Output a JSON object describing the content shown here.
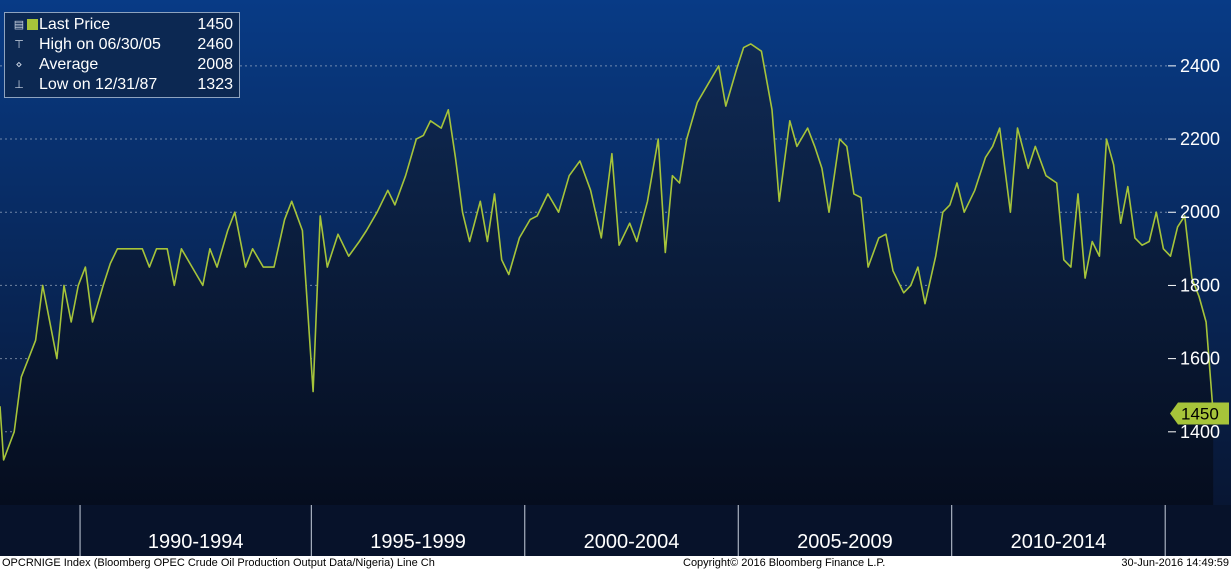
{
  "chart_data": {
    "type": "line",
    "series": [
      {
        "name": "Last Price",
        "color": "#a6c43a",
        "points": [
          [
            1987.0,
            1470
          ],
          [
            1987.1,
            1323
          ],
          [
            1987.4,
            1400
          ],
          [
            1987.6,
            1550
          ],
          [
            1987.8,
            1600
          ],
          [
            1988.0,
            1650
          ],
          [
            1988.2,
            1800
          ],
          [
            1988.4,
            1700
          ],
          [
            1988.6,
            1600
          ],
          [
            1988.8,
            1800
          ],
          [
            1989.0,
            1700
          ],
          [
            1989.2,
            1800
          ],
          [
            1989.4,
            1850
          ],
          [
            1989.6,
            1700
          ],
          [
            1989.9,
            1800
          ],
          [
            1990.1,
            1860
          ],
          [
            1990.3,
            1900
          ],
          [
            1990.6,
            1900
          ],
          [
            1991.0,
            1900
          ],
          [
            1991.2,
            1850
          ],
          [
            1991.4,
            1900
          ],
          [
            1991.7,
            1900
          ],
          [
            1991.9,
            1800
          ],
          [
            1992.1,
            1900
          ],
          [
            1992.4,
            1850
          ],
          [
            1992.7,
            1800
          ],
          [
            1992.9,
            1900
          ],
          [
            1993.1,
            1850
          ],
          [
            1993.4,
            1950
          ],
          [
            1993.6,
            2000
          ],
          [
            1993.9,
            1850
          ],
          [
            1994.1,
            1900
          ],
          [
            1994.4,
            1850
          ],
          [
            1994.7,
            1850
          ],
          [
            1995.0,
            1980
          ],
          [
            1995.2,
            2030
          ],
          [
            1995.5,
            1950
          ],
          [
            1995.8,
            1510
          ],
          [
            1996.0,
            1990
          ],
          [
            1996.2,
            1850
          ],
          [
            1996.5,
            1940
          ],
          [
            1996.8,
            1880
          ],
          [
            1997.1,
            1920
          ],
          [
            1997.3,
            1950
          ],
          [
            1997.6,
            2000
          ],
          [
            1997.9,
            2060
          ],
          [
            1998.1,
            2020
          ],
          [
            1998.4,
            2100
          ],
          [
            1998.7,
            2200
          ],
          [
            1998.9,
            2210
          ],
          [
            1999.1,
            2250
          ],
          [
            1999.4,
            2230
          ],
          [
            1999.6,
            2280
          ],
          [
            1999.8,
            2150
          ],
          [
            2000.0,
            2000
          ],
          [
            2000.2,
            1920
          ],
          [
            2000.5,
            2030
          ],
          [
            2000.7,
            1920
          ],
          [
            2000.9,
            2050
          ],
          [
            2001.1,
            1870
          ],
          [
            2001.3,
            1830
          ],
          [
            2001.6,
            1930
          ],
          [
            2001.9,
            1980
          ],
          [
            2002.1,
            1990
          ],
          [
            2002.4,
            2050
          ],
          [
            2002.7,
            2000
          ],
          [
            2003.0,
            2100
          ],
          [
            2003.3,
            2140
          ],
          [
            2003.6,
            2060
          ],
          [
            2003.9,
            1930
          ],
          [
            2004.2,
            2160
          ],
          [
            2004.4,
            1910
          ],
          [
            2004.7,
            1970
          ],
          [
            2004.9,
            1920
          ],
          [
            2005.2,
            2030
          ],
          [
            2005.5,
            2200
          ],
          [
            2005.7,
            1890
          ],
          [
            2005.9,
            2100
          ],
          [
            2006.1,
            2080
          ],
          [
            2006.3,
            2200
          ],
          [
            2006.6,
            2300
          ],
          [
            2006.9,
            2350
          ],
          [
            2007.2,
            2400
          ],
          [
            2007.4,
            2290
          ],
          [
            2007.7,
            2390
          ],
          [
            2007.9,
            2450
          ],
          [
            2008.1,
            2460
          ],
          [
            2008.4,
            2440
          ],
          [
            2008.7,
            2280
          ],
          [
            2008.9,
            2030
          ],
          [
            2009.2,
            2250
          ],
          [
            2009.4,
            2180
          ],
          [
            2009.7,
            2230
          ],
          [
            2009.9,
            2180
          ],
          [
            2010.1,
            2120
          ],
          [
            2010.3,
            2000
          ],
          [
            2010.6,
            2200
          ],
          [
            2010.8,
            2180
          ],
          [
            2011.0,
            2050
          ],
          [
            2011.2,
            2040
          ],
          [
            2011.4,
            1850
          ],
          [
            2011.7,
            1930
          ],
          [
            2011.9,
            1940
          ],
          [
            2012.1,
            1840
          ],
          [
            2012.4,
            1780
          ],
          [
            2012.6,
            1800
          ],
          [
            2012.8,
            1850
          ],
          [
            2013.0,
            1750
          ],
          [
            2013.3,
            1880
          ],
          [
            2013.5,
            2000
          ],
          [
            2013.7,
            2020
          ],
          [
            2013.9,
            2080
          ],
          [
            2014.1,
            2000
          ],
          [
            2014.4,
            2060
          ],
          [
            2014.7,
            2150
          ],
          [
            2014.9,
            2180
          ],
          [
            2015.1,
            2230
          ],
          [
            2015.4,
            2000
          ],
          [
            2015.6,
            2230
          ],
          [
            2015.9,
            2120
          ],
          [
            2016.1,
            2180
          ],
          [
            2016.4,
            2100
          ],
          [
            2016.7,
            2080
          ],
          [
            2016.9,
            1870
          ],
          [
            2017.1,
            1850
          ],
          [
            2017.3,
            2050
          ],
          [
            2017.5,
            1820
          ],
          [
            2017.7,
            1920
          ],
          [
            2017.9,
            1880
          ],
          [
            2018.1,
            2200
          ],
          [
            2018.3,
            2130
          ],
          [
            2018.5,
            1970
          ],
          [
            2018.7,
            2070
          ],
          [
            2018.9,
            1930
          ],
          [
            2019.1,
            1910
          ],
          [
            2019.3,
            1920
          ],
          [
            2019.5,
            2000
          ],
          [
            2019.7,
            1900
          ],
          [
            2019.9,
            1880
          ],
          [
            2020.1,
            1960
          ],
          [
            2020.3,
            1990
          ],
          [
            2020.5,
            1820
          ],
          [
            2020.7,
            1770
          ],
          [
            2020.9,
            1700
          ],
          [
            2021.1,
            1450
          ]
        ]
      }
    ],
    "title": "",
    "xlabel": "",
    "ylabel": "",
    "xlim": [
      1987.0,
      2021.6
    ],
    "ylim": [
      1200,
      2580
    ],
    "y_ticks": [
      1400,
      1600,
      1800,
      2000,
      2200,
      2400
    ],
    "x_period_dividers": [
      1989.25,
      1995.75,
      2001.75,
      2007.75,
      2013.75,
      2019.75
    ],
    "x_period_labels": [
      {
        "label": "1990-1994",
        "at": 1992.5
      },
      {
        "label": "1995-1999",
        "at": 1998.75
      },
      {
        "label": "2000-2004",
        "at": 2004.75
      },
      {
        "label": "2005-2009",
        "at": 2010.75
      },
      {
        "label": "2010-2014",
        "at": 2016.75
      }
    ],
    "last_value_tag": "1450",
    "grid": true,
    "grid_style": "dashed-horizontal",
    "background_top_color": "#083b86",
    "background_bottom_color": "#081633",
    "fill_top_color": "#0f2a55",
    "fill_bottom_color": "#050d1e"
  },
  "legend": {
    "items": [
      {
        "label": "Last Price",
        "value": "1450"
      },
      {
        "label": "High on 06/30/05",
        "value": "2460"
      },
      {
        "label": "Average",
        "value": "2008"
      },
      {
        "label": "Low on 12/31/87",
        "value": "1323"
      }
    ],
    "swatch_color": "#a6c43a"
  },
  "footer": {
    "left": "OPCRNIGE Index (Bloomberg OPEC Crude Oil Production Output Data/Nigeria) Line Ch",
    "center": "Copyright© 2016 Bloomberg Finance L.P.",
    "right": "30-Jun-2016 14:49:59"
  }
}
